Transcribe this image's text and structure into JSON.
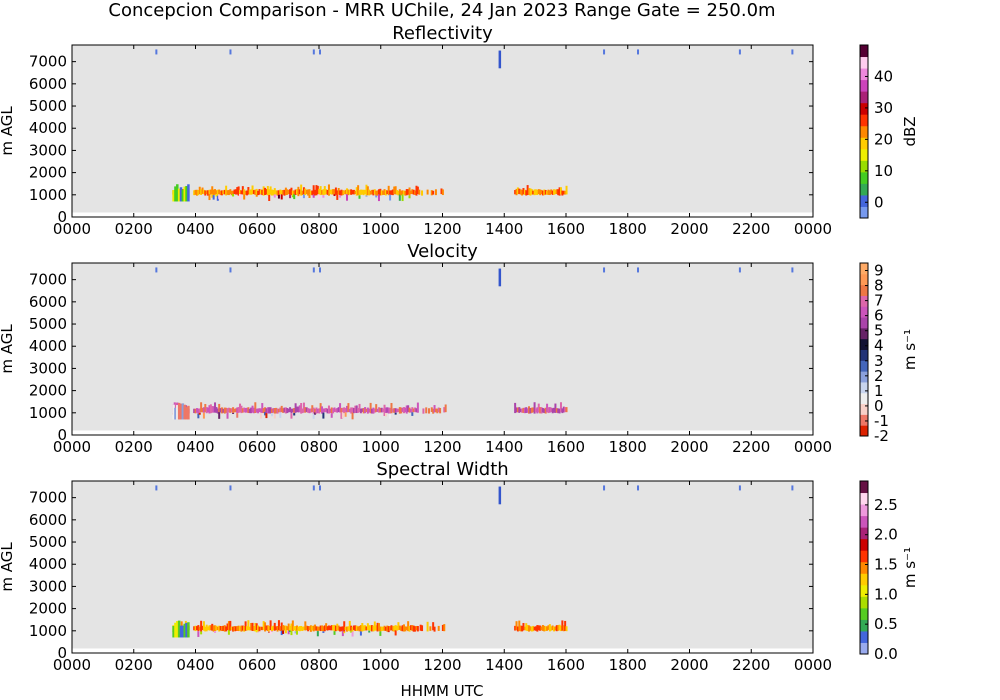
{
  "figure": {
    "suptitle": "Concepcion Comparison - MRR UChile, 24 Jan 2023 Range Gate = 250.0m",
    "xlabel": "HHMM UTC"
  },
  "chart_data": [
    {
      "type": "heatmap",
      "title": "Reflectivity",
      "ylabel": "m AGL",
      "xlim": [
        0,
        24
      ],
      "ylim": [
        0,
        7750
      ],
      "x_ticks": [
        "0000",
        "0200",
        "0400",
        "0600",
        "0800",
        "1000",
        "1200",
        "1400",
        "1600",
        "1800",
        "2000",
        "2200",
        "0000"
      ],
      "y_ticks": [
        "0",
        "1000",
        "2000",
        "3000",
        "4000",
        "5000",
        "6000",
        "7000"
      ],
      "colorbar": {
        "label": "dBZ",
        "range": [
          -5,
          50
        ],
        "ticks": [
          "0",
          "10",
          "20",
          "30",
          "40"
        ],
        "colors": [
          "#7799ee",
          "#4466dd",
          "#33aa55",
          "#44cc22",
          "#99dd00",
          "#eeee00",
          "#ffcc00",
          "#ff8800",
          "#ff3300",
          "#cc0000",
          "#aa2277",
          "#cc44bb",
          "#ee88dd",
          "#ffccee",
          "#550033"
        ]
      },
      "background": "#e4e4e4",
      "echo_layer": {
        "start_hhmm": "0315",
        "end_hhmm": "1600",
        "base_m": 700,
        "top_m": 1500,
        "dominant": "10-25 dBZ"
      },
      "elevated_echo": {
        "hhmm": "1340",
        "base_m": 6700,
        "top_m": 7500
      }
    },
    {
      "type": "heatmap",
      "title": "Velocity",
      "ylabel": "m s^-1 / m AGL",
      "xlim": [
        0,
        24
      ],
      "ylim": [
        0,
        7750
      ],
      "x_ticks": [
        "0000",
        "0200",
        "0400",
        "0600",
        "0800",
        "1000",
        "1200",
        "1400",
        "1600",
        "1800",
        "2000",
        "2200",
        "0000"
      ],
      "y_ticks": [
        "0",
        "1000",
        "2000",
        "3000",
        "4000",
        "5000",
        "6000",
        "7000"
      ],
      "colorbar": {
        "label": "m s⁻¹",
        "range": [
          -2,
          9.5
        ],
        "ticks": [
          "-2",
          "-1",
          "0",
          "1",
          "2",
          "3",
          "4",
          "5",
          "6",
          "7",
          "8",
          "9"
        ],
        "colors": [
          "#dd2200",
          "#ee7766",
          "#f8d0c8",
          "#eeeeee",
          "#c8d4ee",
          "#8aa0dd",
          "#4466bb",
          "#223377",
          "#111133",
          "#662266",
          "#aa44aa",
          "#cc55bb",
          "#dd66aa",
          "#ee7744",
          "#ff9955",
          "#ffaa66"
        ]
      },
      "background": "#e4e4e4",
      "echo_layer": {
        "start_hhmm": "0315",
        "end_hhmm": "1600",
        "base_m": 700,
        "top_m": 1500,
        "dominant": "5-7 m/s"
      },
      "elevated_echo": {
        "hhmm": "1340",
        "base_m": 6700,
        "top_m": 7500
      }
    },
    {
      "type": "heatmap",
      "title": "Spectral Width",
      "ylabel": "m AGL",
      "xlim": [
        0,
        24
      ],
      "ylim": [
        0,
        7750
      ],
      "x_ticks": [
        "0000",
        "0200",
        "0400",
        "0600",
        "0800",
        "1000",
        "1200",
        "1400",
        "1600",
        "1800",
        "2000",
        "2200",
        "0000"
      ],
      "y_ticks": [
        "0",
        "1000",
        "2000",
        "3000",
        "4000",
        "5000",
        "6000",
        "7000"
      ],
      "colorbar": {
        "label": "m s⁻¹",
        "range": [
          0,
          2.9
        ],
        "ticks": [
          "0.0",
          "0.5",
          "1.0",
          "1.5",
          "2.0",
          "2.5"
        ],
        "colors": [
          "#99aaee",
          "#4466dd",
          "#33aa55",
          "#55cc22",
          "#aadd00",
          "#eeee00",
          "#ffcc00",
          "#ff8800",
          "#ff3300",
          "#cc0000",
          "#aa2277",
          "#cc55bb",
          "#ee99dd",
          "#ffd6ee",
          "#661144"
        ]
      },
      "background": "#e4e4e4",
      "echo_layer": {
        "start_hhmm": "0315",
        "end_hhmm": "1600",
        "base_m": 700,
        "top_m": 1500,
        "dominant": "1.5-2.2 m/s"
      },
      "elevated_echo": {
        "hhmm": "1340",
        "base_m": 6700,
        "top_m": 7500
      }
    }
  ]
}
